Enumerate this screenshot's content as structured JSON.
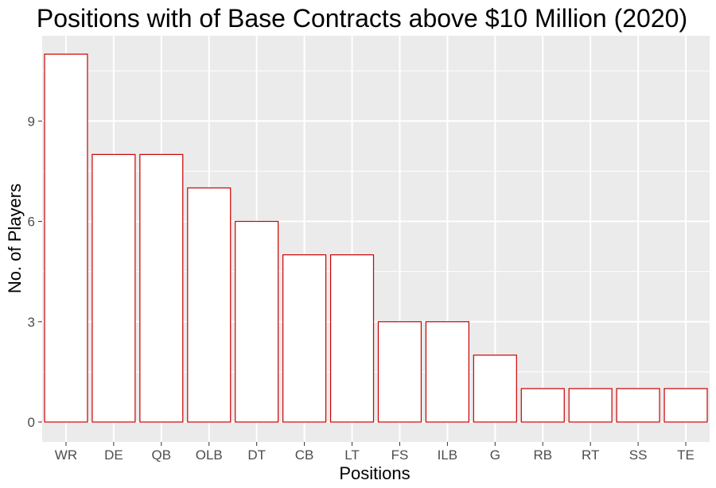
{
  "chart_data": {
    "type": "bar",
    "title": "Positions with of Base Contracts above $10 Million (2020)",
    "xlabel": "Positions",
    "ylabel": "No. of Players",
    "categories": [
      "WR",
      "DE",
      "QB",
      "OLB",
      "DT",
      "CB",
      "LT",
      "FS",
      "ILB",
      "G",
      "RB",
      "RT",
      "SS",
      "TE"
    ],
    "values": [
      11,
      8,
      8,
      7,
      6,
      5,
      5,
      3,
      3,
      2,
      1,
      1,
      1,
      1
    ],
    "yticks": [
      0,
      3,
      6,
      9
    ],
    "ylim": [
      0,
      11.55
    ],
    "grid": true,
    "bar_fill": "#ffffff",
    "bar_outline": "#cc0000",
    "panel_background": "#ebebeb",
    "grid_color": "#ffffff",
    "legend": "none"
  }
}
